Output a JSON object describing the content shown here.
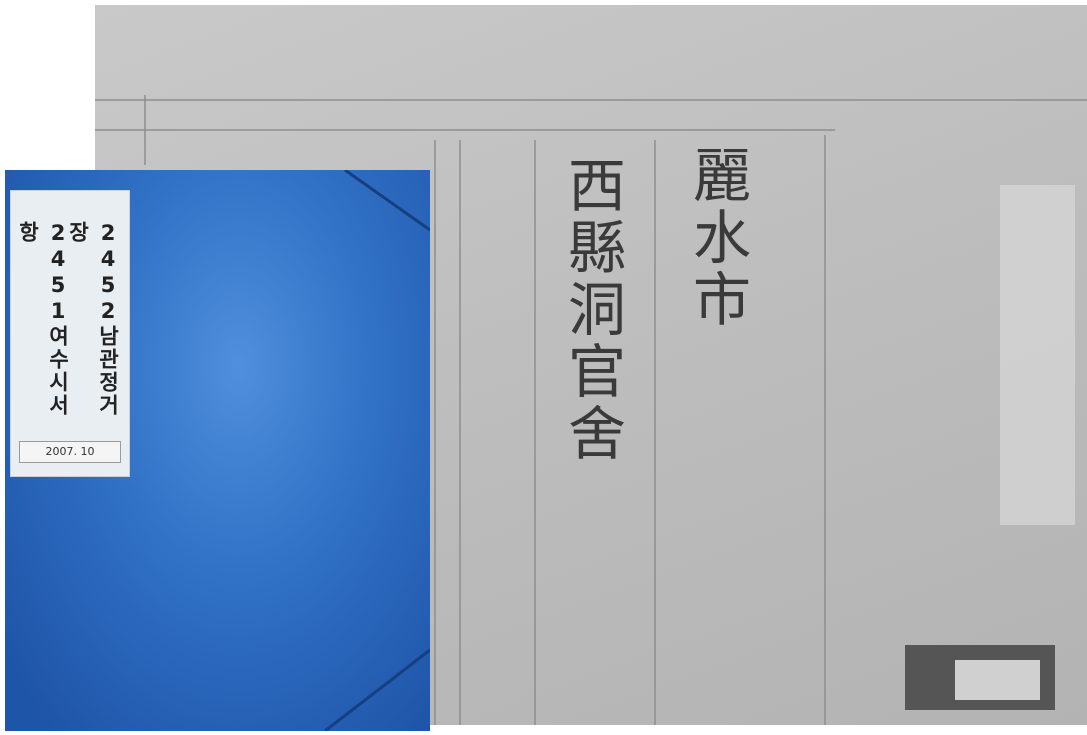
{
  "folder_label": {
    "columns": [
      "2451여수시서항",
      "2452남관정거장"
    ],
    "date": "2007. 10"
  },
  "document": {
    "lines": [
      "西縣洞官舍",
      "麗水市"
    ]
  }
}
